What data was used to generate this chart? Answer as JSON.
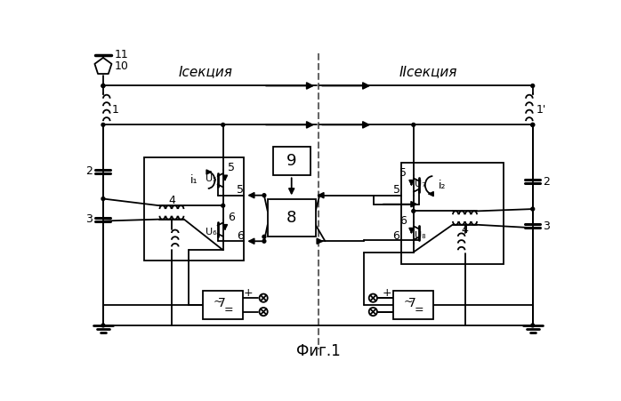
{
  "title": "Фиг.1",
  "sec1": "Iсекция",
  "sec2": "IIсекция",
  "bg": "#ffffff",
  "lc": "#000000",
  "lw": 1.3
}
